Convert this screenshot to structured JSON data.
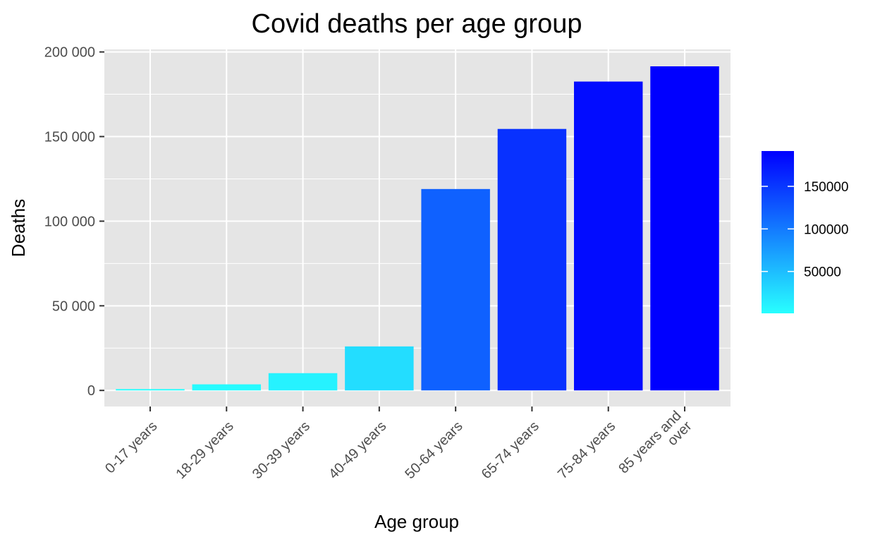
{
  "chart_data": {
    "type": "bar",
    "title": "Covid deaths per age group",
    "xlabel": "Age group",
    "ylabel": "Deaths",
    "categories": [
      "0-17 years",
      "18-29 years",
      "30-39 years",
      "40-49 years",
      "50-64 years",
      "65-74 years",
      "75-84 years",
      "85 years and over"
    ],
    "category_lines": [
      [
        "0-17 years"
      ],
      [
        "18-29 years"
      ],
      [
        "30-39 years"
      ],
      [
        "40-49 years"
      ],
      [
        "50-64 years"
      ],
      [
        "65-74 years"
      ],
      [
        "75-84 years"
      ],
      [
        "85 years and",
        "over"
      ]
    ],
    "values": [
      800,
      3600,
      10200,
      26000,
      119000,
      154500,
      182500,
      191500
    ],
    "ylim": [
      -9500,
      201500
    ],
    "y_ticks": [
      0,
      50000,
      100000,
      150000,
      200000
    ],
    "y_tick_labels": [
      "0",
      "50 000",
      "100 000",
      "150 000",
      "200 000"
    ],
    "grid": true,
    "legend": {
      "position": "right",
      "type": "colorbar",
      "range": [
        800,
        191500
      ],
      "ticks": [
        50000,
        100000,
        150000
      ],
      "tick_labels": [
        "50000",
        "100000",
        "150000"
      ],
      "low_color": "#28FFFF",
      "high_color": "#0000FF"
    },
    "panel_background": "#E5E5E5",
    "grid_color": "#FFFFFF"
  }
}
